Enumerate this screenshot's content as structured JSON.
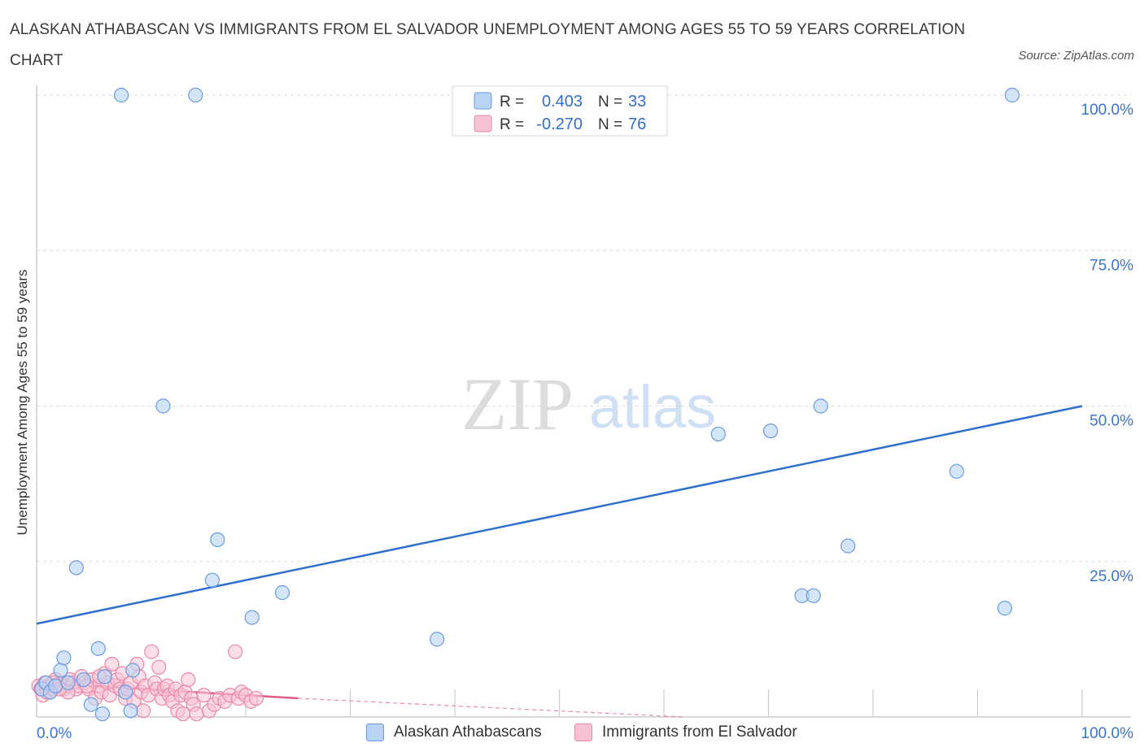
{
  "title": "ALASKAN ATHABASCAN VS IMMIGRANTS FROM EL SALVADOR UNEMPLOYMENT AMONG AGES 55 TO 59 YEARS CORRELATION CHART",
  "source": "Source: ZipAtlas.com",
  "watermark": {
    "zip": "ZIP",
    "atlas": "atlas"
  },
  "legend": {
    "r_label": "R =",
    "n_label": "N =",
    "series1": {
      "r": "0.403",
      "n": "33"
    },
    "series2": {
      "r": "-0.270",
      "n": "76"
    }
  },
  "bottom_legend": {
    "series1": "Alaskan Athabascans",
    "series2": "Immigrants from El Salvador"
  },
  "colors": {
    "series1_fill": "#b9d3f5",
    "series1_stroke": "#6a9be0",
    "series1_line": "#2f6fcf",
    "series2_fill": "#f7c3d4",
    "series2_stroke": "#e88aa8",
    "series2_line": "#e05c88",
    "axis_label_blue": "#3a74cc"
  },
  "chart_data": {
    "type": "scatter",
    "title": "ALASKAN ATHABASCAN VS IMMIGRANTS FROM EL SALVADOR UNEMPLOYMENT AMONG AGES 55 TO 59 YEARS CORRELATION CHART",
    "xlabel": "",
    "ylabel": "Unemployment Among Ages 55 to 59 years",
    "xlim": [
      0,
      100
    ],
    "ylim": [
      0,
      100
    ],
    "x_tick_labels": [
      "0.0%",
      "100.0%"
    ],
    "y_tick_labels": [
      "25.0%",
      "50.0%",
      "75.0%",
      "100.0%"
    ],
    "y_ticks": [
      25,
      50,
      75,
      100
    ],
    "grid": true,
    "series": [
      {
        "name": "Alaskan Athabascans",
        "R": 0.403,
        "N": 33,
        "trend": {
          "x": [
            0,
            100
          ],
          "y": [
            15,
            50
          ]
        },
        "points": [
          [
            0.5,
            4.5
          ],
          [
            0.9,
            5.5
          ],
          [
            1.3,
            4.0
          ],
          [
            1.8,
            5.0
          ],
          [
            2.3,
            7.5
          ],
          [
            2.6,
            9.5
          ],
          [
            3.0,
            5.5
          ],
          [
            3.8,
            24.0
          ],
          [
            4.5,
            6.0
          ],
          [
            5.2,
            2.0
          ],
          [
            5.9,
            11.0
          ],
          [
            6.3,
            0.5
          ],
          [
            6.5,
            6.5
          ],
          [
            8.1,
            100
          ],
          [
            8.5,
            4.0
          ],
          [
            9.0,
            1.0
          ],
          [
            9.2,
            7.5
          ],
          [
            12.1,
            50.0
          ],
          [
            15.2,
            100
          ],
          [
            16.8,
            22.0
          ],
          [
            17.3,
            28.5
          ],
          [
            20.6,
            16.0
          ],
          [
            23.5,
            20.0
          ],
          [
            38.3,
            12.5
          ],
          [
            65.2,
            45.5
          ],
          [
            70.2,
            46.0
          ],
          [
            75.0,
            50.0
          ],
          [
            73.2,
            19.5
          ],
          [
            74.3,
            19.5
          ],
          [
            77.6,
            27.5
          ],
          [
            88.0,
            39.5
          ],
          [
            92.6,
            17.5
          ],
          [
            93.3,
            100
          ]
        ]
      },
      {
        "name": "Immigrants from El Salvador",
        "R": -0.27,
        "N": 76,
        "trend": {
          "x": [
            0,
            25
          ],
          "y": [
            5.5,
            3.0
          ]
        },
        "trend_dashed_extension": {
          "x": [
            25,
            62
          ],
          "y": [
            3.0,
            0.0
          ]
        },
        "points": [
          [
            0.2,
            5.0
          ],
          [
            0.4,
            4.5
          ],
          [
            0.6,
            3.5
          ],
          [
            0.8,
            5.5
          ],
          [
            1.0,
            4.0
          ],
          [
            1.2,
            5.0
          ],
          [
            1.5,
            4.5
          ],
          [
            1.8,
            6.0
          ],
          [
            2.0,
            5.0
          ],
          [
            2.3,
            5.5
          ],
          [
            2.6,
            4.5
          ],
          [
            2.9,
            5.0
          ],
          [
            3.2,
            6.0
          ],
          [
            3.5,
            5.5
          ],
          [
            3.8,
            4.5
          ],
          [
            4.0,
            5.0
          ],
          [
            4.3,
            6.5
          ],
          [
            4.6,
            5.5
          ],
          [
            5.0,
            4.5
          ],
          [
            5.3,
            6.0
          ],
          [
            5.6,
            3.0
          ],
          [
            5.9,
            5.0
          ],
          [
            6.2,
            4.0
          ],
          [
            6.5,
            7.0
          ],
          [
            6.8,
            5.5
          ],
          [
            7.0,
            3.5
          ],
          [
            7.2,
            8.5
          ],
          [
            7.5,
            5.0
          ],
          [
            7.7,
            6.0
          ],
          [
            8.0,
            4.5
          ],
          [
            8.2,
            7.0
          ],
          [
            8.5,
            3.0
          ],
          [
            8.7,
            4.5
          ],
          [
            9.0,
            5.5
          ],
          [
            9.3,
            2.5
          ],
          [
            9.6,
            8.5
          ],
          [
            9.8,
            6.5
          ],
          [
            10.0,
            4.0
          ],
          [
            10.2,
            1.0
          ],
          [
            10.4,
            5.0
          ],
          [
            10.7,
            3.5
          ],
          [
            11.0,
            10.5
          ],
          [
            11.3,
            5.5
          ],
          [
            11.5,
            4.5
          ],
          [
            11.7,
            8.0
          ],
          [
            12.0,
            3.0
          ],
          [
            12.2,
            4.5
          ],
          [
            12.5,
            5.0
          ],
          [
            12.7,
            3.5
          ],
          [
            13.0,
            2.5
          ],
          [
            13.3,
            4.5
          ],
          [
            13.5,
            1.0
          ],
          [
            13.8,
            3.5
          ],
          [
            14.0,
            0.5
          ],
          [
            14.2,
            4.0
          ],
          [
            14.5,
            6.0
          ],
          [
            14.8,
            3.0
          ],
          [
            15.0,
            2.0
          ],
          [
            15.3,
            0.5
          ],
          [
            16.0,
            3.5
          ],
          [
            16.5,
            1.0
          ],
          [
            17.0,
            2.0
          ],
          [
            17.5,
            3.0
          ],
          [
            18.0,
            2.5
          ],
          [
            18.5,
            3.5
          ],
          [
            19.0,
            10.5
          ],
          [
            19.3,
            3.0
          ],
          [
            19.6,
            4.0
          ],
          [
            20.0,
            3.5
          ],
          [
            20.5,
            2.5
          ],
          [
            21.0,
            3.0
          ],
          [
            3.0,
            4.0
          ],
          [
            1.6,
            5.5
          ],
          [
            6.0,
            6.5
          ],
          [
            4.8,
            5.0
          ],
          [
            2.2,
            4.5
          ]
        ]
      }
    ]
  }
}
